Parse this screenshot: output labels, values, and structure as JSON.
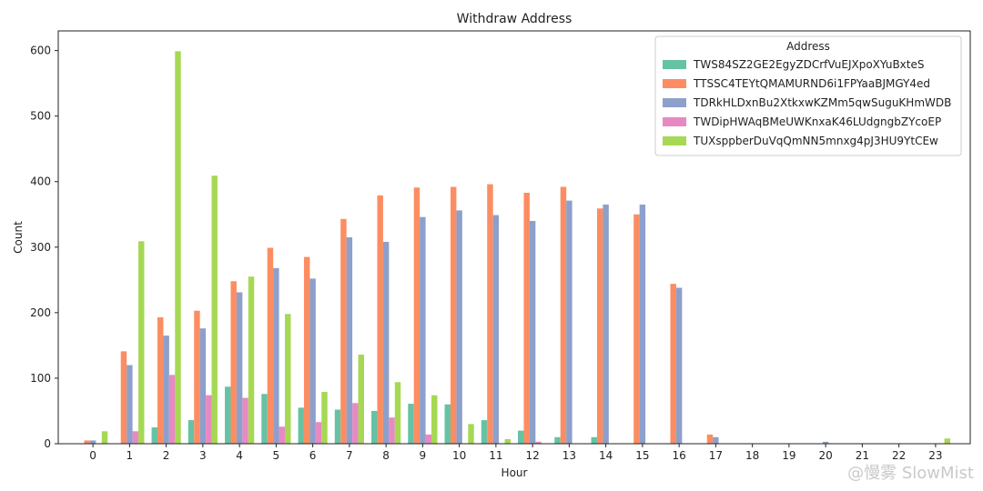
{
  "chart_data": {
    "type": "bar",
    "title": "Withdraw Address",
    "xlabel": "Hour",
    "ylabel": "Count",
    "ylim": [
      0,
      630
    ],
    "yticks": [
      0,
      100,
      200,
      300,
      400,
      500,
      600
    ],
    "grid": false,
    "legend_title": "Address",
    "legend_position": "top-right",
    "categories": [
      "0",
      "1",
      "2",
      "3",
      "4",
      "5",
      "6",
      "7",
      "8",
      "9",
      "10",
      "11",
      "12",
      "13",
      "14",
      "15",
      "16",
      "17",
      "18",
      "19",
      "20",
      "21",
      "22",
      "23"
    ],
    "series": [
      {
        "name": "TWS84SZ2GE2EgyZDCrfVuEJXpoXYuBxteS",
        "color": "#66c2a5",
        "values": [
          0,
          0,
          25,
          36,
          87,
          76,
          55,
          52,
          50,
          61,
          60,
          36,
          20,
          10,
          10,
          0,
          0,
          0,
          0,
          0,
          0,
          0,
          0,
          0
        ]
      },
      {
        "name": "TTSSC4TEYtQMAMURND6i1FPYaaBJMGY4ed",
        "color": "#fc8d62",
        "values": [
          5,
          141,
          193,
          203,
          248,
          299,
          285,
          343,
          379,
          391,
          392,
          396,
          383,
          392,
          359,
          350,
          244,
          14,
          0,
          0,
          0,
          0,
          0,
          0
        ]
      },
      {
        "name": "TDRkHLDxnBu2XtkxwKZMm5qwSuguKHmWDB",
        "color": "#8da0cb",
        "values": [
          5,
          120,
          165,
          176,
          231,
          268,
          252,
          315,
          308,
          346,
          356,
          349,
          340,
          371,
          365,
          365,
          238,
          10,
          0,
          0,
          3,
          0,
          0,
          0
        ]
      },
      {
        "name": "TWDipHWAqBMeUWKnxaK46LUdgngbZYcoEP",
        "color": "#e78ac3",
        "values": [
          0,
          19,
          105,
          74,
          70,
          26,
          33,
          62,
          40,
          14,
          0,
          0,
          3,
          0,
          0,
          0,
          0,
          0,
          0,
          0,
          0,
          0,
          0,
          0
        ]
      },
      {
        "name": "TUXsppberDuVqQmNN5mnxg4pJ3HU9YtCEw",
        "color": "#a6d854",
        "values": [
          19,
          309,
          599,
          409,
          255,
          198,
          79,
          136,
          94,
          74,
          30,
          7,
          0,
          0,
          0,
          0,
          0,
          0,
          0,
          0,
          0,
          0,
          0,
          8
        ]
      }
    ]
  },
  "watermark": "@慢雾 SlowMist"
}
